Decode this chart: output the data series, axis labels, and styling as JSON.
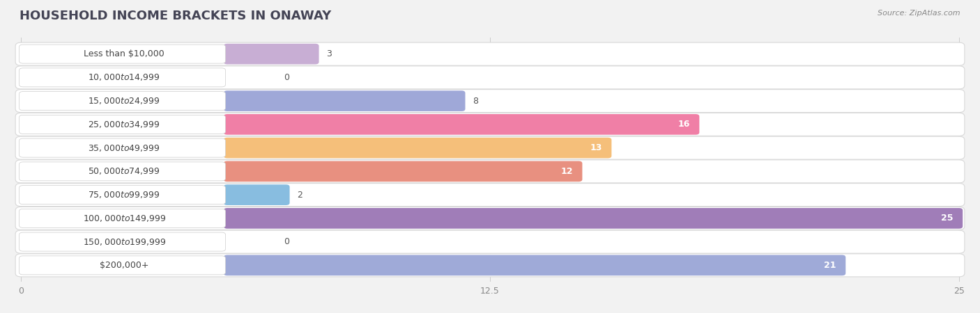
{
  "title": "HOUSEHOLD INCOME BRACKETS IN ONAWAY",
  "source": "Source: ZipAtlas.com",
  "categories": [
    "Less than $10,000",
    "$10,000 to $14,999",
    "$15,000 to $24,999",
    "$25,000 to $34,999",
    "$35,000 to $49,999",
    "$50,000 to $74,999",
    "$75,000 to $99,999",
    "$100,000 to $149,999",
    "$150,000 to $199,999",
    "$200,000+"
  ],
  "values": [
    3,
    0,
    8,
    16,
    13,
    12,
    2,
    25,
    0,
    21
  ],
  "bar_colors": [
    "#c8aed4",
    "#72bfbb",
    "#9fa8d8",
    "#f07fa6",
    "#f5bf7a",
    "#e89080",
    "#88bde0",
    "#a07db8",
    "#72bfbb",
    "#9faad8"
  ],
  "xlim_data": [
    0,
    25
  ],
  "xticks": [
    0,
    12.5,
    25
  ],
  "xtick_labels": [
    "0",
    "12.5",
    "25"
  ],
  "bg_color": "#f2f2f2",
  "row_bg_color": "#ffffff",
  "label_inside_threshold": 10,
  "value_fontsize": 9,
  "category_fontsize": 9,
  "title_fontsize": 13
}
